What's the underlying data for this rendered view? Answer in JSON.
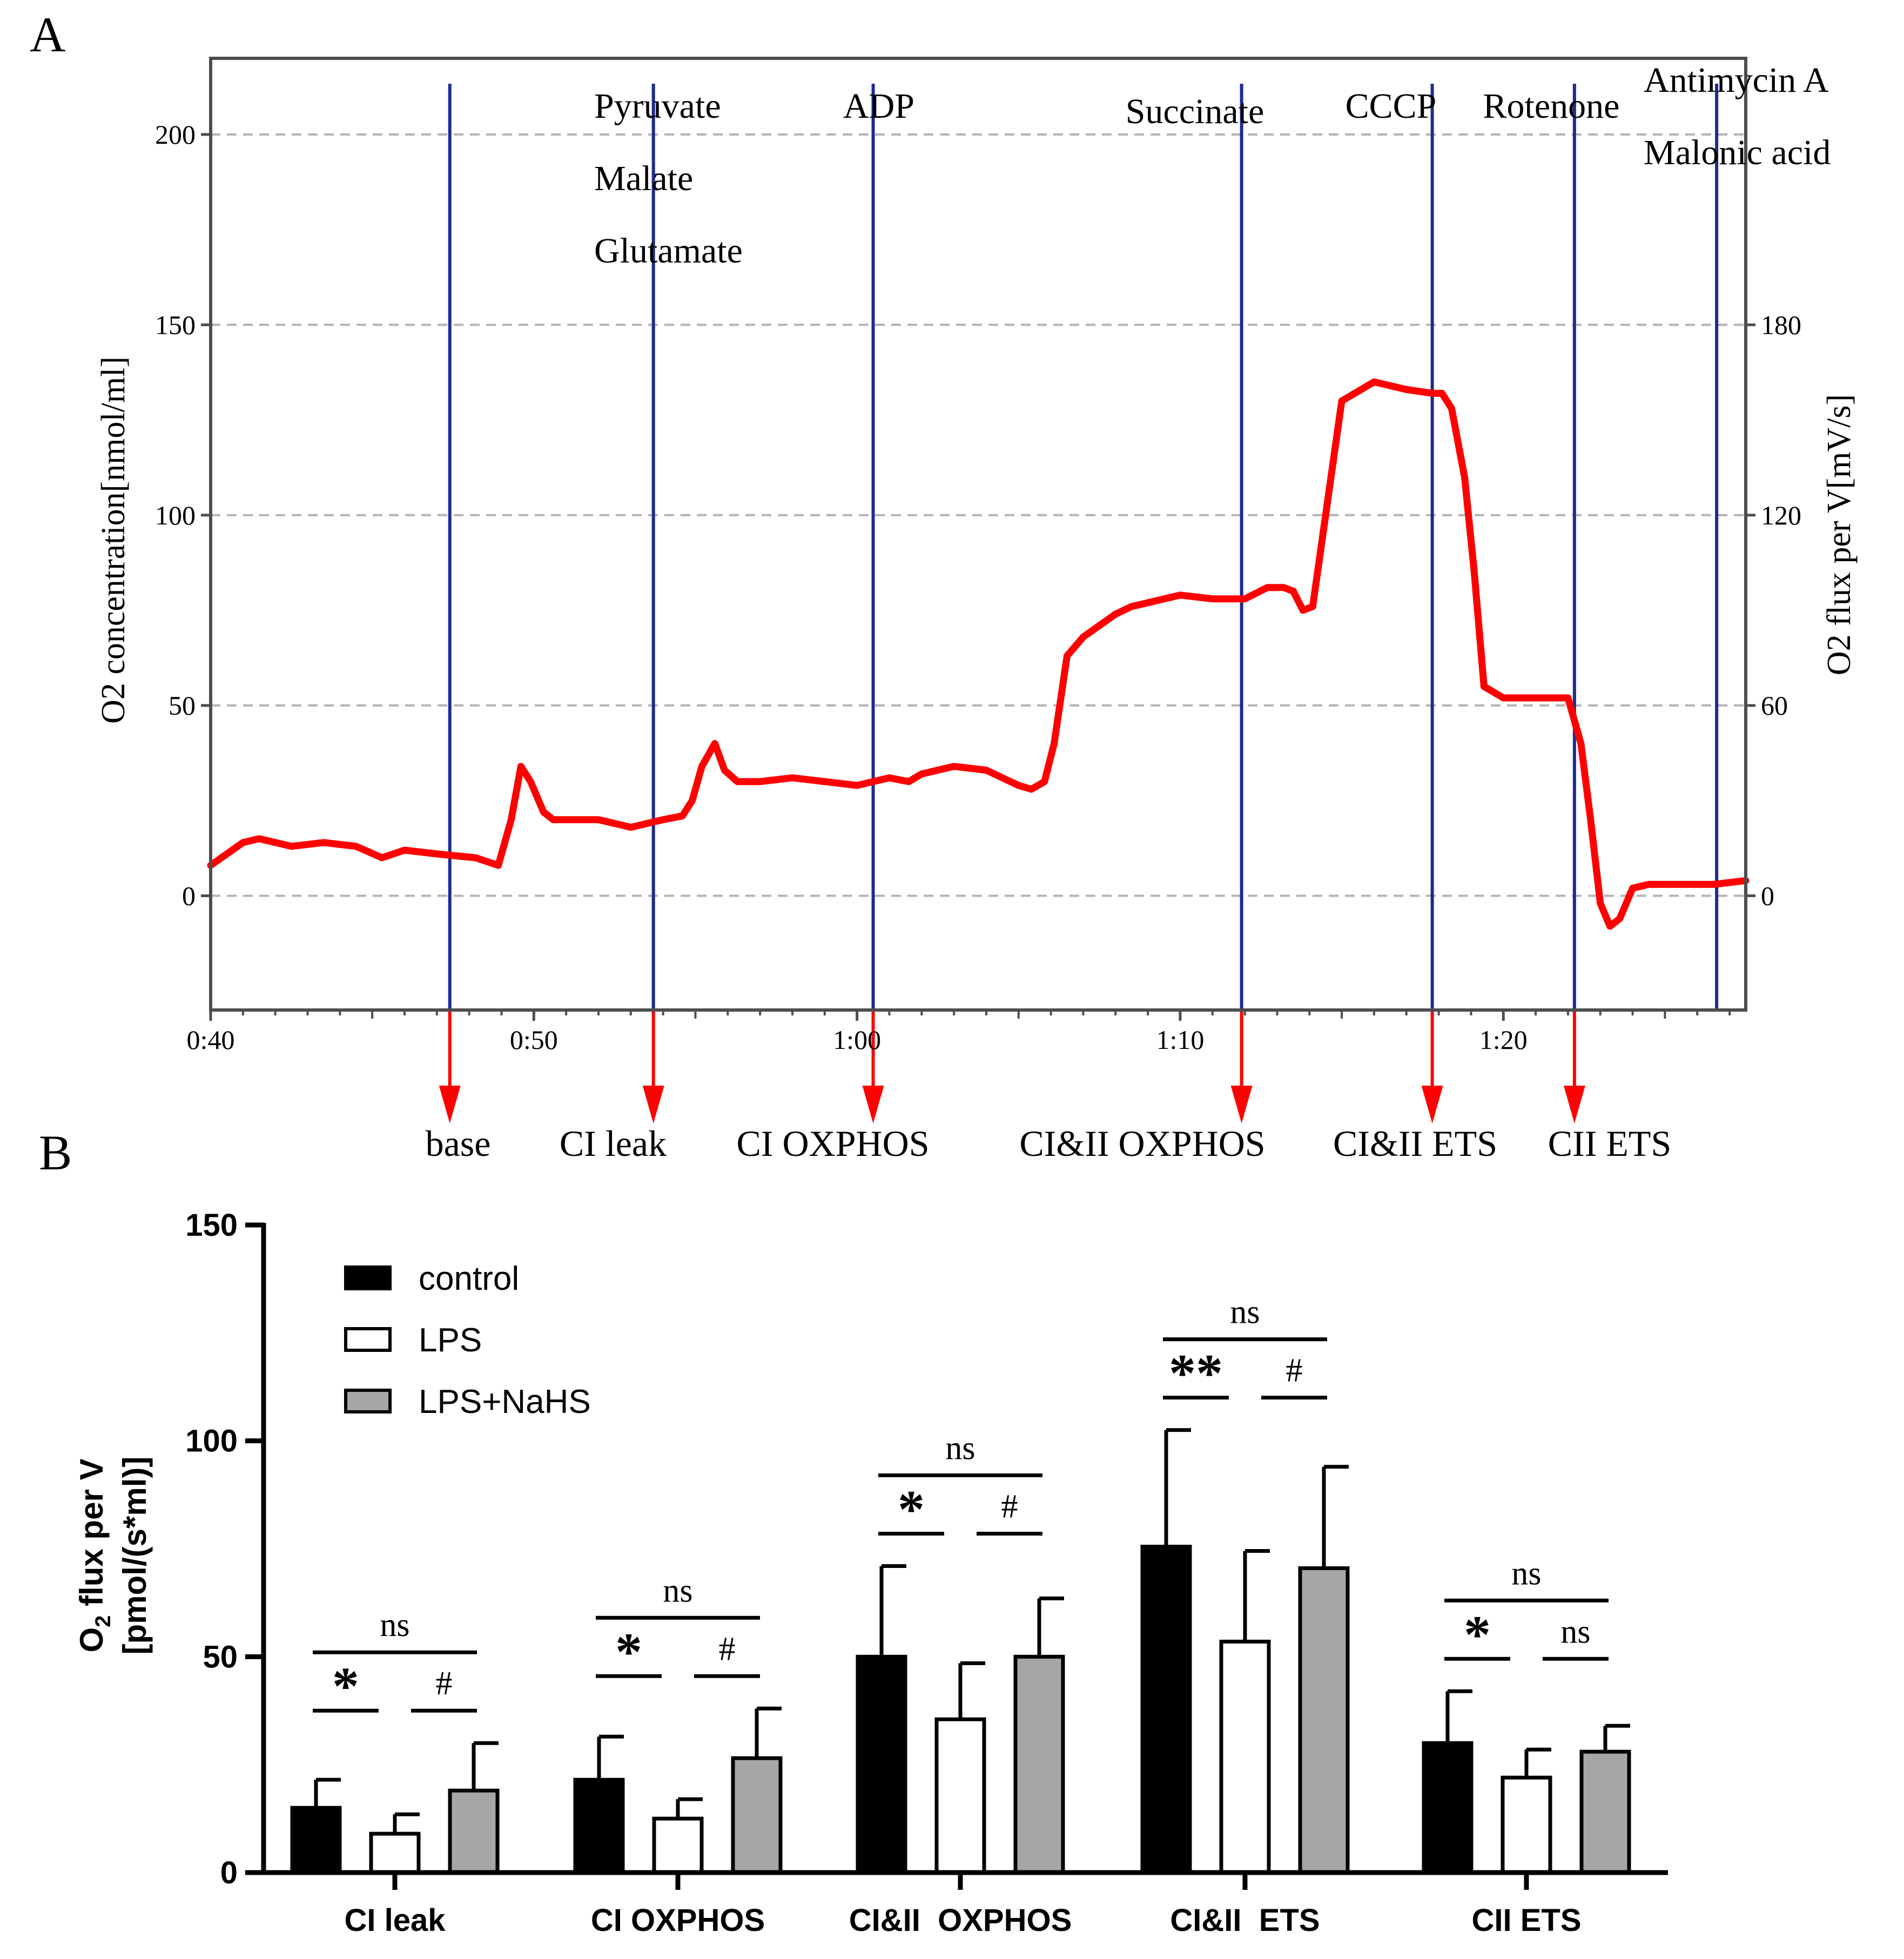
{
  "panels": {
    "a": {
      "letter": "A"
    },
    "b": {
      "letter": "B"
    }
  },
  "chart_data": [
    {
      "type": "line",
      "panel": "A",
      "title": "",
      "xlabel": "",
      "ylabel_left": "O2 concentration[nmol/ml]",
      "ylabel_right": "O2 flux per V[mV/s]",
      "xlim_minutes": [
        40,
        87.5
      ],
      "ylim_left": [
        -30,
        220
      ],
      "ylim_right": [
        -36,
        264
      ],
      "x_ticks": [
        {
          "value": 40,
          "label": "0:40"
        },
        {
          "value": 50,
          "label": "0:50"
        },
        {
          "value": 60,
          "label": "1:00"
        },
        {
          "value": 70,
          "label": "1:10"
        },
        {
          "value": 80,
          "label": "1:20"
        }
      ],
      "y_ticks_left": [
        {
          "value": 0,
          "label": "0"
        },
        {
          "value": 50,
          "label": "50"
        },
        {
          "value": 100,
          "label": "100"
        },
        {
          "value": 150,
          "label": "150"
        },
        {
          "value": 200,
          "label": "200"
        }
      ],
      "y_ticks_right": [
        {
          "value": 0,
          "label": "0"
        },
        {
          "value": 60,
          "label": "60"
        },
        {
          "value": 120,
          "label": "120"
        },
        {
          "value": 180,
          "label": "180"
        }
      ],
      "grid": "horizontal dashed",
      "series": [
        {
          "name": "O2 flux trace",
          "color": "#ff0000",
          "x": [
            40.0,
            41.0,
            41.5,
            42.5,
            43.5,
            44.5,
            45.3,
            46.0,
            47.0,
            48.2,
            48.9,
            49.3,
            49.6,
            49.9,
            50.3,
            50.6,
            51.0,
            52.0,
            53.0,
            54.0,
            54.6,
            54.9,
            55.2,
            55.6,
            55.9,
            56.3,
            57.0,
            58.0,
            59.0,
            60.0,
            61.0,
            61.6,
            62.0,
            63.0,
            64.0,
            65.0,
            65.4,
            65.8,
            66.1,
            66.5,
            67.0,
            67.5,
            68.0,
            68.5,
            69.0,
            70.0,
            71.0,
            72.0,
            72.7,
            73.2,
            73.5,
            73.8,
            74.1,
            74.5,
            75.0,
            76.0,
            77.0,
            77.8,
            78.1,
            78.4,
            78.8,
            79.1,
            79.4,
            80.0,
            81.0,
            81.6,
            82.0,
            82.4,
            82.7,
            83.0,
            83.3,
            83.6,
            84.0,
            84.5,
            85.5,
            86.5,
            87.5
          ],
          "y": [
            8,
            14,
            15,
            13,
            14,
            13,
            10,
            12,
            11,
            10,
            8,
            20,
            34,
            30,
            22,
            20,
            20,
            20,
            18,
            20,
            21,
            25,
            34,
            40,
            33,
            30,
            30,
            31,
            30,
            29,
            31,
            30,
            32,
            34,
            33,
            29,
            28,
            30,
            40,
            63,
            68,
            71,
            74,
            76,
            77,
            79,
            78,
            78,
            81,
            81,
            80,
            75,
            76,
            100,
            130,
            135,
            133,
            132,
            132,
            128,
            110,
            85,
            55,
            52,
            52,
            52,
            52,
            40,
            20,
            -2,
            -8,
            -6,
            2,
            3,
            3,
            3,
            4
          ]
        }
      ],
      "markers": [
        {
          "x": 47.4,
          "bottom_label": "base",
          "top_label": []
        },
        {
          "x": 53.7,
          "bottom_label": "CI leak",
          "top_label": [
            "Pyruvate",
            "Malate",
            "Glutamate"
          ]
        },
        {
          "x": 60.5,
          "bottom_label": "CI OXPHOS",
          "top_label": [
            "ADP"
          ]
        },
        {
          "x": 71.9,
          "bottom_label": "CI&II OXPHOS",
          "top_label": [
            "Succinate"
          ]
        },
        {
          "x": 77.8,
          "bottom_label": "CI&II ETS",
          "top_label": [
            "CCCP"
          ]
        },
        {
          "x": 82.2,
          "bottom_label": "CII ETS",
          "top_label": [
            "Rotenone"
          ]
        },
        {
          "x": 86.6,
          "bottom_label": "",
          "top_label": [
            "Antimycin A",
            "Malonic acid"
          ]
        }
      ]
    },
    {
      "type": "bar",
      "panel": "B",
      "title": "",
      "xlabel": "",
      "ylabel": "O2 flux per V",
      "ylabel_sub": "[pmol/(s*ml)]",
      "ylim": [
        0,
        150
      ],
      "y_ticks": [
        0,
        50,
        100,
        150
      ],
      "categories": [
        "CI leak",
        "CI OXPHOS",
        "CI&II  OXPHOS",
        "CI&II  ETS",
        "CII ETS"
      ],
      "series": [
        {
          "name": "control",
          "fill": "#000000",
          "values": [
            15,
            21.5,
            50,
            75.5,
            30
          ],
          "errors": [
            6.5,
            10,
            21,
            27,
            12
          ]
        },
        {
          "name": "LPS",
          "fill": "#ffffff",
          "values": [
            9,
            12.5,
            35.5,
            53.5,
            22
          ],
          "errors": [
            4.5,
            4.5,
            13,
            21,
            6.5
          ]
        },
        {
          "name": "LPS+NaHS",
          "fill": "#a6a6a6",
          "values": [
            19,
            26.5,
            50,
            70.5,
            28
          ],
          "errors": [
            11,
            11.5,
            13.5,
            23.5,
            6
          ]
        }
      ],
      "legend_position": "top-left",
      "significance": [
        {
          "category": 0,
          "top": "ns",
          "left": "*",
          "right": "#"
        },
        {
          "category": 1,
          "top": "ns",
          "left": "*",
          "right": "#"
        },
        {
          "category": 2,
          "top": "ns",
          "left": "*",
          "right": "#"
        },
        {
          "category": 3,
          "top": "ns",
          "left": "**",
          "right": "#"
        },
        {
          "category": 4,
          "top": "ns",
          "left": "*",
          "right": "ns"
        }
      ]
    }
  ]
}
